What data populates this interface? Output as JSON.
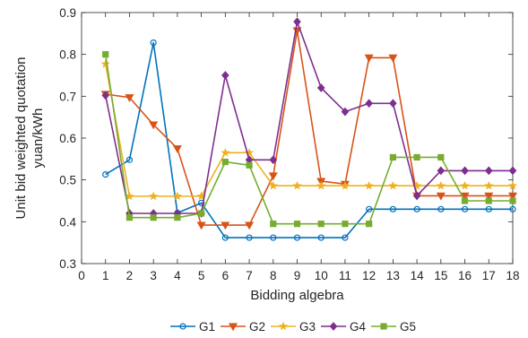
{
  "chart_data": {
    "type": "line",
    "xlabel": "Bidding algebra",
    "ylabel_lines": [
      "Unit bid weighted quotation",
      "yuan/kWh"
    ],
    "xlim": [
      0,
      18
    ],
    "ylim": [
      0.3,
      0.9
    ],
    "xticks": [
      "0",
      "1",
      "2",
      "3",
      "4",
      "5",
      "6",
      "7",
      "8",
      "9",
      "10",
      "11",
      "12",
      "13",
      "14",
      "15",
      "16",
      "17",
      "18"
    ],
    "yticks": [
      "0.3",
      "0.4",
      "0.5",
      "0.6",
      "0.7",
      "0.8",
      "0.9"
    ],
    "grid": false,
    "legend_position": "bottom",
    "x": [
      1,
      2,
      3,
      4,
      5,
      6,
      7,
      8,
      9,
      10,
      11,
      12,
      13,
      14,
      15,
      16,
      17,
      18
    ],
    "series": [
      {
        "name": "G1",
        "color": "#0072BD",
        "marker": "circle",
        "values": [
          0.513,
          0.548,
          0.828,
          0.421,
          0.445,
          0.362,
          0.362,
          0.362,
          0.362,
          0.362,
          0.362,
          0.43,
          0.43,
          0.43,
          0.43,
          0.43,
          0.43,
          0.43
        ]
      },
      {
        "name": "G2",
        "color": "#D95319",
        "marker": "triangle-down",
        "values": [
          0.705,
          0.697,
          0.632,
          0.575,
          0.392,
          0.392,
          0.392,
          0.51,
          0.857,
          0.497,
          0.49,
          0.792,
          0.792,
          0.462,
          0.462,
          0.462,
          0.462,
          0.462
        ]
      },
      {
        "name": "G3",
        "color": "#EDB120",
        "marker": "star",
        "values": [
          0.777,
          0.461,
          0.461,
          0.461,
          0.461,
          0.565,
          0.565,
          0.486,
          0.486,
          0.486,
          0.486,
          0.486,
          0.486,
          0.486,
          0.486,
          0.486,
          0.486,
          0.486
        ]
      },
      {
        "name": "G4",
        "color": "#7E2F8E",
        "marker": "diamond",
        "values": [
          0.702,
          0.42,
          0.42,
          0.42,
          0.42,
          0.75,
          0.548,
          0.548,
          0.878,
          0.72,
          0.663,
          0.683,
          0.683,
          0.462,
          0.522,
          0.522,
          0.522,
          0.522
        ]
      },
      {
        "name": "G5",
        "color": "#77AC30",
        "marker": "square",
        "values": [
          0.8,
          0.41,
          0.41,
          0.41,
          0.42,
          0.543,
          0.535,
          0.395,
          0.395,
          0.395,
          0.395,
          0.395,
          0.554,
          0.554,
          0.554,
          0.45,
          0.45,
          0.45
        ]
      }
    ]
  }
}
